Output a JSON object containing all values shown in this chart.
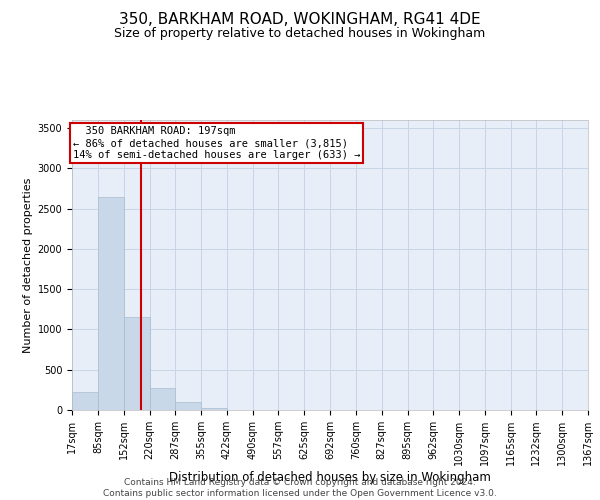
{
  "title": "350, BARKHAM ROAD, WOKINGHAM, RG41 4DE",
  "subtitle": "Size of property relative to detached houses in Wokingham",
  "xlabel": "Distribution of detached houses by size in Wokingham",
  "ylabel": "Number of detached properties",
  "footer_line1": "Contains HM Land Registry data © Crown copyright and database right 2024.",
  "footer_line2": "Contains public sector information licensed under the Open Government Licence v3.0.",
  "bin_edges": [
    17,
    85,
    152,
    220,
    287,
    355,
    422,
    490,
    557,
    625,
    692,
    760,
    827,
    895,
    962,
    1030,
    1097,
    1165,
    1232,
    1300,
    1367
  ],
  "bin_counts": [
    220,
    2650,
    1150,
    270,
    95,
    30,
    5,
    0,
    0,
    0,
    0,
    0,
    0,
    0,
    0,
    0,
    0,
    0,
    0,
    0
  ],
  "bar_color": "#c8d8e8",
  "bar_edge_color": "#a8bcd0",
  "property_size": 197,
  "property_label": "350 BARKHAM ROAD: 197sqm",
  "pct_smaller": 86,
  "n_smaller": 3815,
  "pct_larger_semi": 14,
  "n_larger_semi": 633,
  "vline_color": "#cc0000",
  "annotation_box_color": "#cc0000",
  "ylim": [
    0,
    3600
  ],
  "yticks": [
    0,
    500,
    1000,
    1500,
    2000,
    2500,
    3000,
    3500
  ],
  "grid_color": "#c8d4e8",
  "background_color": "#e8eef8",
  "title_fontsize": 11,
  "subtitle_fontsize": 9,
  "xlabel_fontsize": 8.5,
  "ylabel_fontsize": 8,
  "tick_fontsize": 7,
  "footer_fontsize": 6.5,
  "annot_fontsize": 7.5
}
